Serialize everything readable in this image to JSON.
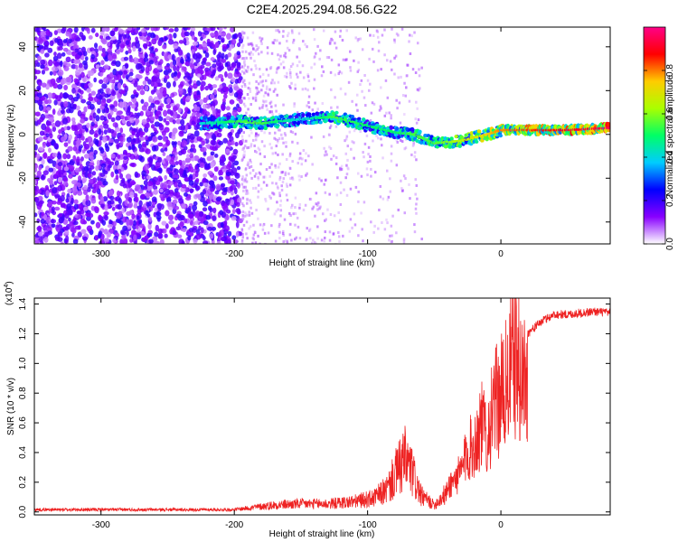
{
  "figure_title": "C2E4.2025.294.08.56.G22",
  "chart_data": [
    {
      "type": "heatmap",
      "xlabel": "Height of straight line (km)",
      "ylabel": "Frequency (Hz)",
      "xlim": [
        -350,
        82
      ],
      "ylim": [
        -50,
        49
      ],
      "xticks": [
        -300,
        -200,
        -100,
        0
      ],
      "yticks": [
        -40,
        -20,
        0,
        20,
        40
      ],
      "colorbar": {
        "label": "Normalized spectral amplitude",
        "range": [
          0,
          1
        ],
        "ticks": [
          0.0,
          0.2,
          0.4,
          0.6,
          0.8
        ],
        "colors": [
          "#ffffff",
          "#8800ff",
          "#0000ff",
          "#00ccff",
          "#00ff66",
          "#aaff00",
          "#ffcc00",
          "#ff0000",
          "#ff0088"
        ]
      },
      "signal_ridge": [
        {
          "x": -225,
          "freq": 5,
          "amp": 0.4
        },
        {
          "x": -195,
          "freq": 6,
          "amp": 0.55
        },
        {
          "x": -180,
          "freq": 5,
          "amp": 0.55
        },
        {
          "x": -150,
          "freq": 7,
          "amp": 0.4
        },
        {
          "x": -125,
          "freq": 8,
          "amp": 0.55
        },
        {
          "x": -100,
          "freq": 4,
          "amp": 0.5
        },
        {
          "x": -80,
          "freq": 1,
          "amp": 0.5
        },
        {
          "x": -65,
          "freq": 0,
          "amp": 0.55
        },
        {
          "x": -50,
          "freq": -4,
          "amp": 0.55
        },
        {
          "x": -30,
          "freq": -3,
          "amp": 0.65
        },
        {
          "x": -10,
          "freq": 0,
          "amp": 0.75
        },
        {
          "x": 0,
          "freq": 2,
          "amp": 0.8
        },
        {
          "x": 20,
          "freq": 2,
          "amp": 0.85
        },
        {
          "x": 50,
          "freq": 2,
          "amp": 0.9
        },
        {
          "x": 82,
          "freq": 3,
          "amp": 0.95
        }
      ]
    },
    {
      "type": "line",
      "xlabel": "Height of straight line (km)",
      "ylabel": "SNR (10 * v/v)",
      "y_multiplier_label": "(x10",
      "y_multiplier_exp": "4",
      "xlim": [
        -350,
        82
      ],
      "ylim": [
        -0.02,
        1.44
      ],
      "xticks": [
        -300,
        -200,
        -100,
        0
      ],
      "yticks": [
        0.0,
        0.2,
        0.4,
        0.6,
        0.8,
        1.0,
        1.2,
        1.4
      ],
      "line_color": "#ee2222",
      "series": [
        {
          "name": "SNR",
          "x": [
            -350,
            -300,
            -250,
            -200,
            -185,
            -170,
            -150,
            -130,
            -110,
            -95,
            -85,
            -78,
            -72,
            -68,
            -60,
            -50,
            -42,
            -38,
            -30,
            -25,
            -20,
            -15,
            -10,
            -5,
            0,
            5,
            8,
            10,
            15,
            20,
            30,
            40,
            50,
            60,
            70,
            82
          ],
          "y": [
            0.02,
            0.02,
            0.02,
            0.02,
            0.04,
            0.06,
            0.07,
            0.07,
            0.09,
            0.12,
            0.2,
            0.35,
            0.45,
            0.38,
            0.14,
            0.06,
            0.15,
            0.25,
            0.35,
            0.55,
            0.6,
            0.78,
            0.7,
            0.95,
            1.05,
            1.15,
            1.35,
            1.4,
            1.2,
            1.2,
            1.28,
            1.33,
            1.33,
            1.34,
            1.35,
            1.34
          ]
        }
      ]
    }
  ]
}
